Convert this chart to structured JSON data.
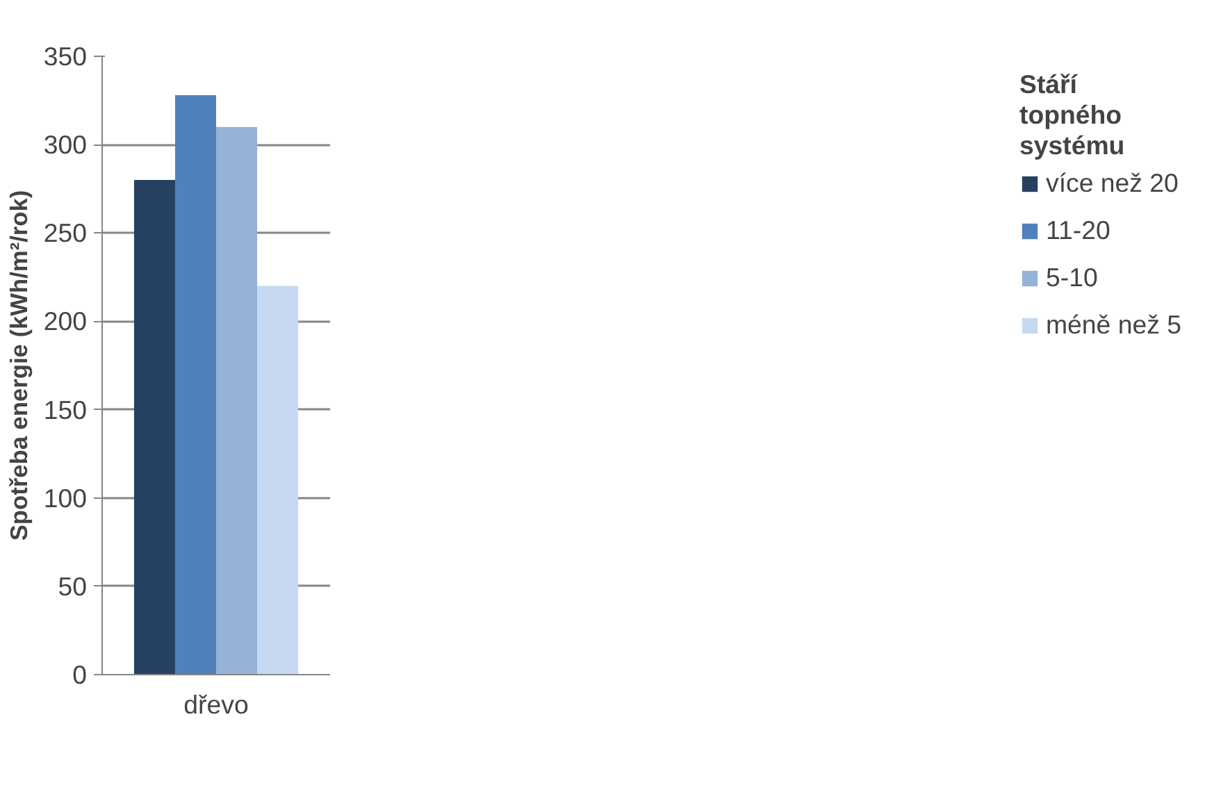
{
  "chart_data": {
    "type": "bar",
    "categories": [
      "dřevo"
    ],
    "ylabel": "Spotřeba energie (kWh/m²/rok)",
    "legend_title": "Stáří topného systému",
    "series": [
      {
        "name": "více než 20",
        "color": "#264061",
        "values": [
          280
        ]
      },
      {
        "name": "11-20",
        "color": "#4f81bd",
        "values": [
          328
        ]
      },
      {
        "name": "5-10",
        "color": "#95b3d7",
        "values": [
          310
        ]
      },
      {
        "name": "méně než 5",
        "color": "#c6d9f0",
        "values": [
          220
        ]
      }
    ],
    "ylim": [
      0,
      350
    ],
    "yticks": [
      0,
      50,
      100,
      150,
      200,
      250,
      300,
      350
    ],
    "grid": "y",
    "legend": "right"
  }
}
